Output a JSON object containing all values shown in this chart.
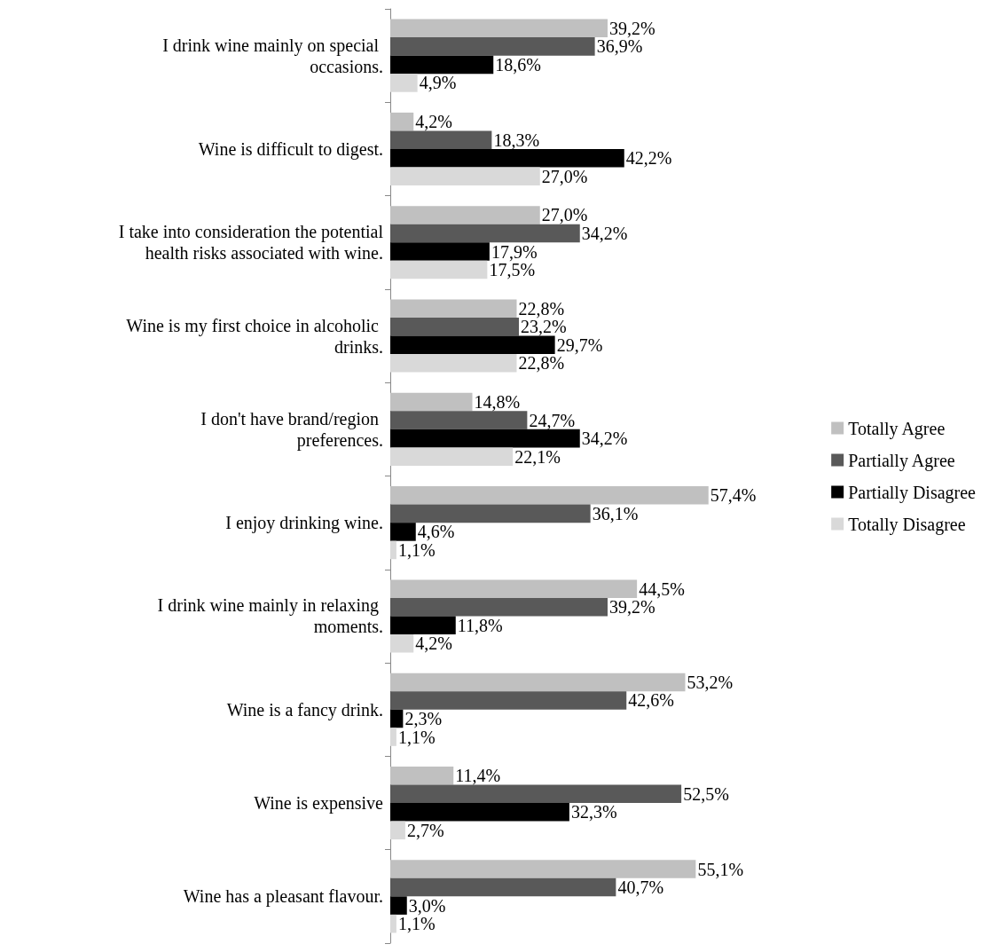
{
  "chart_data": {
    "type": "bar",
    "orientation": "horizontal",
    "tick_labels": "y",
    "legend": "right",
    "categories": [
      "I drink wine mainly on special occasions.",
      "Wine is difficult to digest.",
      "I take into consideration the potential health risks associated with wine.",
      "Wine is my first choice in alcoholic drinks.",
      "I don't have brand/region preferences.",
      "I enjoy drinking wine.",
      "I drink wine mainly in relaxing moments.",
      "Wine is a fancy drink.",
      "Wine is expensive",
      "Wine has a pleasant flavour."
    ],
    "series": [
      {
        "name": "Totally Agree",
        "color": "#c0c0c0",
        "values": [
          39.2,
          4.2,
          27.0,
          22.8,
          14.8,
          57.4,
          44.5,
          53.2,
          11.4,
          55.1
        ],
        "value_labels": [
          "39,2%",
          "4,2%",
          "27,0%",
          "22,8%",
          "14,8%",
          "57,4%",
          "44,5%",
          "53,2%",
          "11,4%",
          "55,1%"
        ]
      },
      {
        "name": "Partially Agree",
        "color": "#595959",
        "values": [
          36.9,
          18.3,
          34.2,
          23.2,
          24.7,
          36.1,
          39.2,
          42.6,
          52.5,
          40.7
        ],
        "value_labels": [
          "36,9%",
          "18,3%",
          "34,2%",
          "23,2%",
          "24,7%",
          "36,1%",
          "39,2%",
          "42,6%",
          "52,5%",
          "40,7%"
        ]
      },
      {
        "name": "Partially Disagree",
        "color": "#000000",
        "values": [
          18.6,
          42.2,
          17.9,
          29.7,
          34.2,
          4.6,
          11.8,
          2.3,
          32.3,
          3.0
        ],
        "value_labels": [
          "18,6%",
          "42,2%",
          "17,9%",
          "29,7%",
          "34,2%",
          "4,6%",
          "11,8%",
          "2,3%",
          "32,3%",
          "3,0%"
        ]
      },
      {
        "name": "Totally Disagree",
        "color": "#d9d9d9",
        "values": [
          4.9,
          27.0,
          17.5,
          22.8,
          22.1,
          1.1,
          4.2,
          1.1,
          2.7,
          1.1
        ],
        "value_labels": [
          "4,9%",
          "27,0%",
          "17,5%",
          "22,8%",
          "22,1%",
          "1,1%",
          "4,2%",
          "1,1%",
          "2,7%",
          "1,1%"
        ]
      }
    ]
  }
}
